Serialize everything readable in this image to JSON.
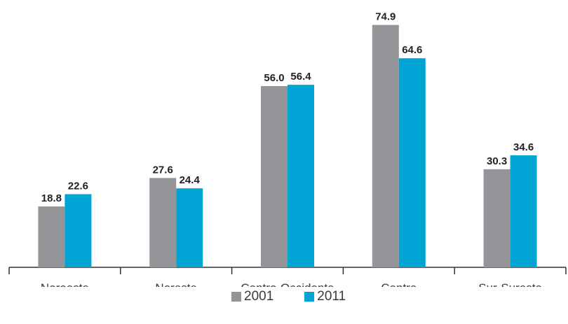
{
  "chart_data": {
    "type": "bar",
    "categories": [
      "Noroeste",
      "Noreste",
      "Centro-Occidente",
      "Centro",
      "Sur-Sureste"
    ],
    "series": [
      {
        "name": "2001",
        "values": [
          18.8,
          27.6,
          56.0,
          74.9,
          30.3
        ],
        "labels": [
          "18.8",
          "27.6",
          "56.0",
          "74.9",
          "30.3"
        ],
        "color": "#939598"
      },
      {
        "name": "2011",
        "values": [
          22.6,
          24.4,
          56.4,
          64.6,
          34.6
        ],
        "labels": [
          "22.6",
          "24.4",
          "56.4",
          "64.6",
          "34.6"
        ],
        "color": "#00a5d6"
      }
    ],
    "ylim": [
      0,
      80
    ],
    "grid": false,
    "legend_position": "bottom"
  },
  "legend": {
    "items": [
      "2001",
      "2011"
    ]
  }
}
